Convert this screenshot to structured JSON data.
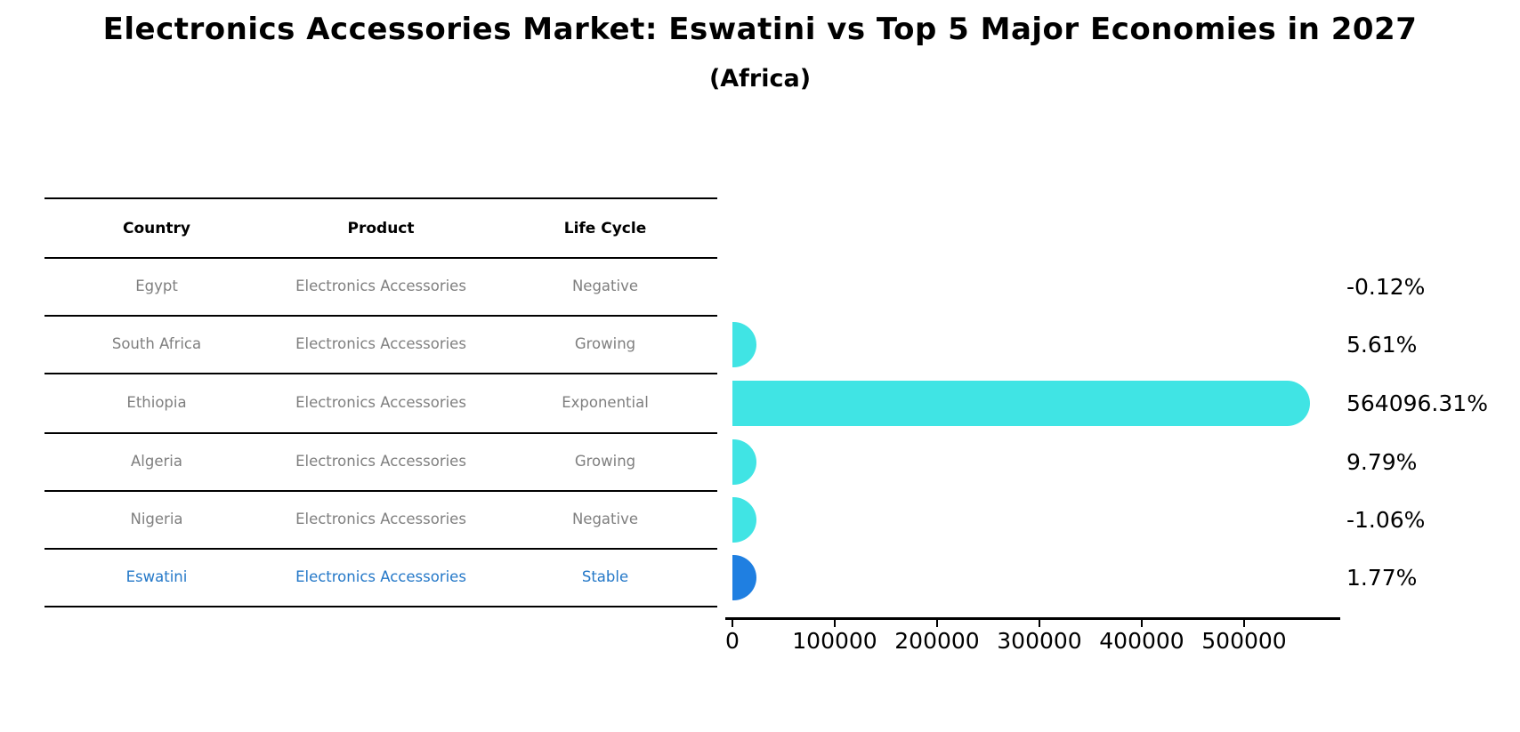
{
  "title": "Electronics Accessories Market: Eswatini vs Top 5 Major Economies in 2027",
  "subtitle": "(Africa)",
  "colors": {
    "bar_default": "#40E4E4",
    "bar_highlight": "#1F7FE1",
    "table_text": "#7f7f7f",
    "highlight_text": "#2478C8",
    "header_text": "#000000",
    "axis": "#000000",
    "background": "#ffffff"
  },
  "table": {
    "headers": [
      "Country",
      "Product",
      "Life Cycle"
    ],
    "rows": [
      {
        "country": "Egypt",
        "product": "Electronics Accessories",
        "life_cycle": "Negative",
        "highlight": false
      },
      {
        "country": "South Africa",
        "product": "Electronics Accessories",
        "life_cycle": "Growing",
        "highlight": false
      },
      {
        "country": "Ethiopia",
        "product": "Electronics Accessories",
        "life_cycle": "Exponential",
        "highlight": false
      },
      {
        "country": "Algeria",
        "product": "Electronics Accessories",
        "life_cycle": "Growing",
        "highlight": false
      },
      {
        "country": "Nigeria",
        "product": "Electronics Accessories",
        "life_cycle": "Negative",
        "highlight": false
      },
      {
        "country": "Eswatini",
        "product": "Electronics Accessories",
        "life_cycle": "Stable",
        "highlight": true
      }
    ]
  },
  "chart_data": {
    "type": "bar",
    "orientation": "horizontal",
    "title": "Electronics Accessories Market: Eswatini vs Top 5 Major Economies in 2027 (Africa)",
    "xlabel": "",
    "ylabel": "",
    "categories": [
      "Egypt",
      "South Africa",
      "Ethiopia",
      "Algeria",
      "Nigeria",
      "Eswatini"
    ],
    "values": [
      -0.12,
      5.61,
      564096.31,
      9.79,
      -1.06,
      1.77
    ],
    "value_labels": [
      "-0.12%",
      "5.61%",
      "564096.31%",
      "9.79%",
      "-1.06%",
      "1.77%"
    ],
    "units": "percent",
    "bar_visible": [
      false,
      true,
      true,
      true,
      true,
      true
    ],
    "bar_colors": [
      "#40E4E4",
      "#40E4E4",
      "#40E4E4",
      "#40E4E4",
      "#40E4E4",
      "#1F7FE1"
    ],
    "x_ticks": [
      0,
      100000,
      200000,
      300000,
      400000,
      500000
    ],
    "x_tick_labels": [
      "0",
      "100000",
      "200000",
      "300000",
      "400000",
      "500000"
    ],
    "xlim": [
      0,
      595000
    ],
    "grid": false,
    "legend": false
  }
}
